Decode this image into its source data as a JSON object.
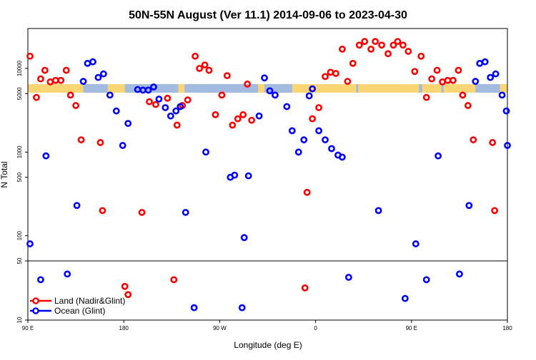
{
  "chart_data": {
    "type": "scatter",
    "title": "50N-55N August (Ver 11.1)   2014-09-06 to 2023-04-30",
    "xlabel": "Longitude (deg E)",
    "ylabel": "N Total",
    "x_ticks": [
      {
        "value": 90,
        "label": "90 E"
      },
      {
        "value": 180,
        "label": "180"
      },
      {
        "value": 270,
        "label": "90 W"
      },
      {
        "value": 360,
        "label": "0"
      },
      {
        "value": 450,
        "label": "90 E"
      },
      {
        "value": 540,
        "label": "180"
      }
    ],
    "xlim": [
      90,
      540
    ],
    "upper_panel": {
      "scale": "log",
      "ylim": [
        50,
        30000
      ],
      "ticks": [
        100,
        500,
        1000,
        5000,
        10000
      ]
    },
    "lower_panel": {
      "scale": "log",
      "ylim": [
        10,
        50
      ],
      "ticks": [
        10,
        50
      ]
    },
    "legend": {
      "position": "bottom-left"
    },
    "colors": {
      "land": "#ff0000",
      "ocean": "#0000ff",
      "map_land": "#fad774",
      "map_ocean": "#a4bbe0"
    },
    "series": [
      {
        "name": "Land (Nadir&Glint)",
        "color": "#ff0000",
        "points": [
          [
            92,
            14000
          ],
          [
            98,
            4500
          ],
          [
            102,
            7500
          ],
          [
            106,
            9500
          ],
          [
            111,
            6900
          ],
          [
            116,
            7200
          ],
          [
            121,
            7200
          ],
          [
            126,
            9500
          ],
          [
            130,
            4800
          ],
          [
            135,
            3600
          ],
          [
            140,
            1400
          ],
          [
            158,
            1300
          ],
          [
            160,
            200
          ],
          [
            181,
            25
          ],
          [
            184,
            20
          ],
          [
            197,
            190
          ],
          [
            204,
            4000
          ],
          [
            210,
            3700
          ],
          [
            221,
            4400
          ],
          [
            227,
            30
          ],
          [
            230,
            2100
          ],
          [
            235,
            3600
          ],
          [
            240,
            4200
          ],
          [
            247,
            14000
          ],
          [
            251,
            10000
          ],
          [
            256,
            11000
          ],
          [
            260,
            9500
          ],
          [
            266,
            2800
          ],
          [
            272,
            4800
          ],
          [
            277,
            8200
          ],
          [
            282,
            2100
          ],
          [
            287,
            2500
          ],
          [
            292,
            2800
          ],
          [
            296,
            6500
          ],
          [
            300,
            2400
          ],
          [
            350,
            24
          ],
          [
            352,
            330
          ],
          [
            357,
            2500
          ],
          [
            363,
            3400
          ],
          [
            369,
            8000
          ],
          [
            374,
            9000
          ],
          [
            379,
            8700
          ],
          [
            385,
            17000
          ],
          [
            390,
            7000
          ],
          [
            395,
            11500
          ],
          [
            401,
            19000
          ],
          [
            406,
            21000
          ],
          [
            412,
            17000
          ],
          [
            416,
            21000
          ],
          [
            422,
            19000
          ],
          [
            428,
            15000
          ],
          [
            433,
            19000
          ],
          [
            437,
            21000
          ],
          [
            442,
            19000
          ],
          [
            447,
            16000
          ],
          [
            453,
            9200
          ],
          [
            459,
            14000
          ],
          [
            464,
            4500
          ],
          [
            469,
            7500
          ],
          [
            474,
            9500
          ],
          [
            479,
            6900
          ],
          [
            484,
            7200
          ],
          [
            489,
            7200
          ],
          [
            494,
            9500
          ],
          [
            498,
            4800
          ],
          [
            503,
            3600
          ],
          [
            508,
            1400
          ],
          [
            526,
            1300
          ],
          [
            528,
            200
          ]
        ]
      },
      {
        "name": "Ocean (Glint)",
        "color": "#0000ff",
        "points": [
          [
            92,
            80
          ],
          [
            102,
            30
          ],
          [
            107,
            900
          ],
          [
            127,
            35
          ],
          [
            136,
            230
          ],
          [
            142,
            7000
          ],
          [
            146,
            11500
          ],
          [
            151,
            12000
          ],
          [
            156,
            7800
          ],
          [
            161,
            8600
          ],
          [
            167,
            4800
          ],
          [
            173,
            3100
          ],
          [
            179,
            1200
          ],
          [
            184,
            2200
          ],
          [
            193,
            5600
          ],
          [
            198,
            5500
          ],
          [
            203,
            5500
          ],
          [
            208,
            6000
          ],
          [
            213,
            4300
          ],
          [
            219,
            3400
          ],
          [
            224,
            2700
          ],
          [
            229,
            3100
          ],
          [
            233,
            3500
          ],
          [
            238,
            190
          ],
          [
            246,
            14
          ],
          [
            257,
            1000
          ],
          [
            280,
            500
          ],
          [
            284,
            530
          ],
          [
            291,
            14
          ],
          [
            293,
            95
          ],
          [
            297,
            520
          ],
          [
            307,
            2700
          ],
          [
            312,
            7700
          ],
          [
            317,
            5400
          ],
          [
            322,
            4800
          ],
          [
            333,
            3500
          ],
          [
            338,
            1800
          ],
          [
            344,
            1000
          ],
          [
            349,
            1400
          ],
          [
            354,
            4700
          ],
          [
            357,
            5700
          ],
          [
            363,
            1800
          ],
          [
            369,
            1400
          ],
          [
            375,
            1100
          ],
          [
            381,
            920
          ],
          [
            385,
            870
          ],
          [
            391,
            32
          ],
          [
            419,
            200
          ],
          [
            444,
            18
          ],
          [
            454,
            80
          ],
          [
            464,
            30
          ],
          [
            475,
            900
          ],
          [
            495,
            35
          ],
          [
            504,
            230
          ],
          [
            510,
            7000
          ],
          [
            514,
            11500
          ],
          [
            519,
            12000
          ],
          [
            524,
            7800
          ],
          [
            529,
            8600
          ],
          [
            535,
            4800
          ],
          [
            539,
            3100
          ],
          [
            540,
            1200
          ]
        ]
      }
    ]
  }
}
